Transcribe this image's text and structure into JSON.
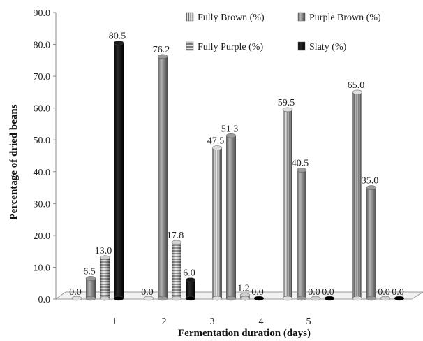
{
  "chart_data": {
    "type": "bar",
    "title": "",
    "xlabel": "Fermentation duration (days)",
    "ylabel": "Percentage of dried beans",
    "ylim": [
      0,
      90
    ],
    "yticks": [
      "0.0",
      "10.0",
      "20.0",
      "30.0",
      "40.0",
      "50.0",
      "60.0",
      "70.0",
      "80.0",
      "90.0"
    ],
    "categories": [
      "1",
      "2",
      "3",
      "4",
      "5"
    ],
    "series": [
      {
        "name": "Fully Brown (%)",
        "values": [
          0.0,
          0.0,
          47.5,
          59.5,
          65.0
        ],
        "labels": [
          "0.0",
          "0.0",
          "47.5",
          "59.5",
          "65.0"
        ],
        "pattern": "vertical-stripes",
        "color": "#c8c8c8"
      },
      {
        "name": "Purple Brown (%)",
        "values": [
          6.5,
          76.2,
          51.3,
          40.5,
          35.0
        ],
        "labels": [
          "6.5",
          "76.2",
          "51.3",
          "40.5",
          "35.0"
        ],
        "pattern": "solid",
        "color": "#808080"
      },
      {
        "name": "Fully Purple (%)",
        "values": [
          13.0,
          17.8,
          1.2,
          0.0,
          0.0
        ],
        "labels": [
          "13.0",
          "17.8",
          "1.2",
          "0.0",
          "0.0"
        ],
        "pattern": "horizontal-stripes",
        "color": "#a0a0a0"
      },
      {
        "name": "Slaty (%)",
        "values": [
          80.5,
          6.0,
          0.0,
          0.0,
          0.0
        ],
        "labels": [
          "80.5",
          "6.0",
          "0.0",
          "0.0",
          "0.0"
        ],
        "pattern": "solid",
        "color": "#000000"
      }
    ],
    "style": "3d-cylinder",
    "legend_position": "top-right",
    "grid": false
  }
}
